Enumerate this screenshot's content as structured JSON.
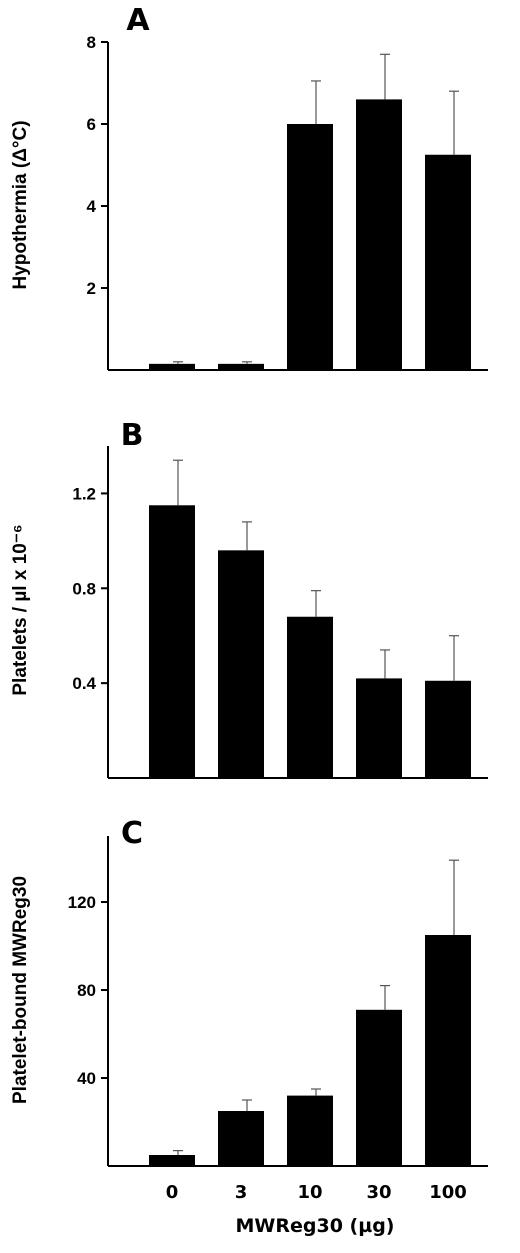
{
  "chart_data": [
    {
      "type": "bar",
      "panel": "A",
      "ylabel": "Hypothermia (Δ°C)",
      "yticks": [
        "2",
        "4",
        "6",
        "8"
      ],
      "ylim": [
        0,
        8
      ],
      "categories": [
        "0",
        "3",
        "10",
        "30",
        "100"
      ],
      "values": [
        0.15,
        0.15,
        6.0,
        6.6,
        5.25
      ],
      "errors": [
        0.05,
        0.05,
        1.05,
        1.1,
        1.55
      ]
    },
    {
      "type": "bar",
      "panel": "B",
      "ylabel": "Platelets / µl x 10⁻⁶",
      "yticks": [
        "0.4",
        "0.8",
        "1.2"
      ],
      "ylim": [
        0,
        1.4
      ],
      "categories": [
        "0",
        "3",
        "10",
        "30",
        "100"
      ],
      "values": [
        1.15,
        0.96,
        0.68,
        0.42,
        0.41
      ],
      "errors": [
        0.19,
        0.12,
        0.11,
        0.12,
        0.19
      ]
    },
    {
      "type": "bar",
      "panel": "C",
      "ylabel": "Platelet-bound MWReg30",
      "yticks": [
        "40",
        "80",
        "120"
      ],
      "ylim": [
        0,
        150
      ],
      "categories": [
        "0",
        "3",
        "10",
        "30",
        "100"
      ],
      "values": [
        5,
        25,
        32,
        71,
        105
      ],
      "errors": [
        2,
        5,
        3,
        11,
        34
      ]
    }
  ],
  "x_axis": {
    "categories": [
      "0",
      "3",
      "10",
      "30",
      "100"
    ],
    "title": "MWReg30 (µg)"
  }
}
